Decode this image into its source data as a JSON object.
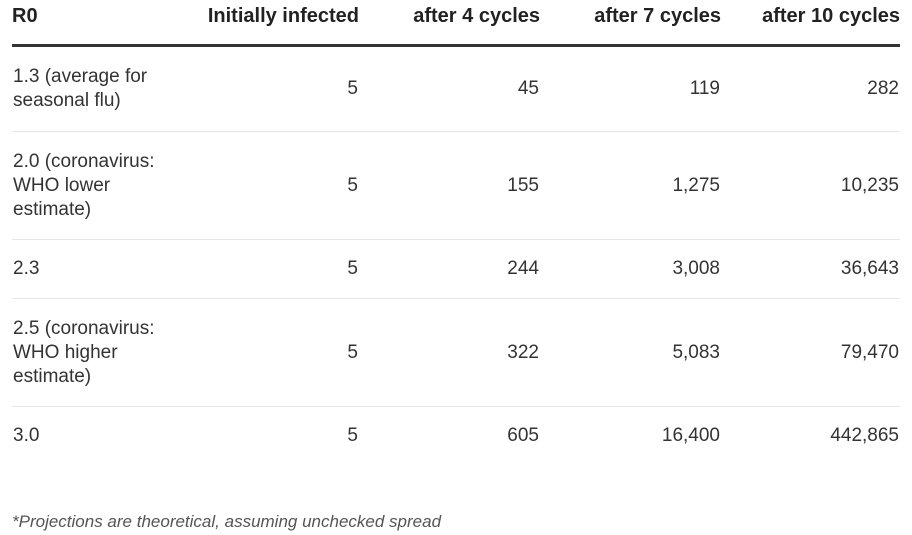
{
  "table": {
    "headers": [
      "R0",
      "Initially infected",
      "after 4 cycles",
      "after 7 cycles",
      "after 10 cycles"
    ],
    "rows": [
      [
        "1.3 (average for seasonal flu)",
        "5",
        "45",
        "119",
        "282"
      ],
      [
        "2.0 (coronavirus: WHO lower estimate)",
        "5",
        "155",
        "1,275",
        "10,235"
      ],
      [
        "2.3",
        "5",
        "244",
        "3,008",
        "36,643"
      ],
      [
        "2.5 (coronavirus: WHO higher estimate)",
        "5",
        "322",
        "5,083",
        "79,470"
      ],
      [
        "3.0",
        "5",
        "605",
        "16,400",
        "442,865"
      ]
    ]
  },
  "footnote": "*Projections are theoretical, assuming unchecked spread"
}
